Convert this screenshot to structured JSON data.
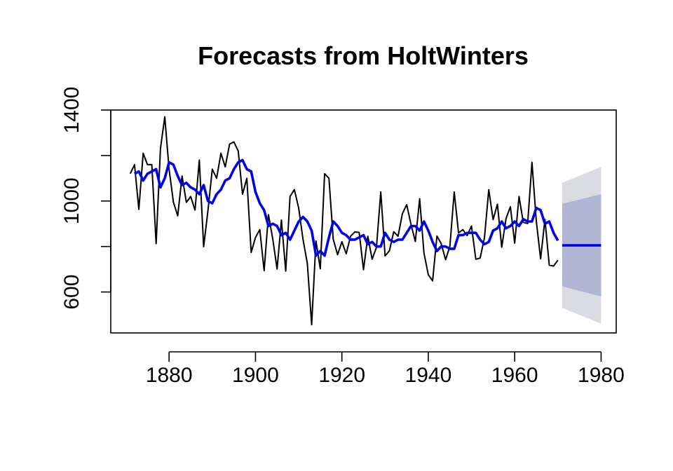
{
  "chart_data": {
    "type": "line",
    "title": "Forecasts from HoltWinters",
    "xlabel": "",
    "ylabel": "",
    "xlim": [
      1866.5,
      1983.5
    ],
    "ylim": [
      420,
      1400
    ],
    "x_ticks": [
      1880,
      1900,
      1920,
      1940,
      1960,
      1980
    ],
    "y_ticks": [
      600,
      1000,
      1400
    ],
    "x_tick_labels": [
      "1880",
      "1900",
      "1920",
      "1940",
      "1960",
      "1980"
    ],
    "y_tick_labels": [
      "600",
      "1000",
      "1400"
    ],
    "grid": false,
    "legend": "none",
    "colors": {
      "observed": "#000000",
      "fitted": "#0000ee",
      "forecast": "#0000ee",
      "band80": "#b1b5d4",
      "band95": "#dbdbe2"
    },
    "series": [
      {
        "role": "observed",
        "x_start": 1871,
        "values": [
          1120,
          1160,
          963,
          1210,
          1160,
          1160,
          813,
          1230,
          1370,
          1140,
          995,
          935,
          1110,
          994,
          1020,
          960,
          1180,
          799,
          958,
          1140,
          1100,
          1210,
          1150,
          1250,
          1260,
          1220,
          1030,
          1100,
          774,
          840,
          874,
          694,
          940,
          833,
          701,
          916,
          692,
          1020,
          1050,
          969,
          831,
          726,
          456,
          824,
          702,
          1120,
          1100,
          832,
          764,
          821,
          768,
          845,
          864,
          862,
          698,
          845,
          744,
          796,
          1040,
          759,
          781,
          865,
          845,
          944,
          984,
          897,
          822,
          1010,
          771,
          676,
          649,
          846,
          812,
          742,
          801,
          1040,
          860,
          874,
          848,
          890,
          744,
          749,
          838,
          1050,
          918,
          986,
          797,
          923,
          975,
          815,
          1020,
          906,
          901,
          1170,
          912,
          746,
          919,
          718,
          714,
          740
        ]
      },
      {
        "role": "fitted",
        "x_start": 1872,
        "values": [
          1120,
          1130,
          1090,
          1120,
          1130,
          1140,
          1060,
          1100,
          1170,
          1160,
          1110,
          1070,
          1080,
          1060,
          1050,
          1030,
          1070,
          1000,
          990,
          1030,
          1050,
          1090,
          1100,
          1140,
          1170,
          1180,
          1140,
          1130,
          1040,
          990,
          960,
          890,
          900,
          890,
          850,
          860,
          830,
          870,
          910,
          930,
          910,
          870,
          760,
          780,
          760,
          840,
          910,
          890,
          860,
          850,
          830,
          830,
          840,
          850,
          810,
          820,
          800,
          800,
          860,
          830,
          820,
          830,
          830,
          860,
          890,
          890,
          870,
          910,
          870,
          820,
          780,
          800,
          800,
          790,
          790,
          850,
          850,
          860,
          860,
          860,
          830,
          810,
          820,
          870,
          880,
          910,
          880,
          890,
          910,
          890,
          920,
          910,
          910,
          970,
          960,
          900,
          910,
          860,
          826
        ]
      },
      {
        "role": "forecast",
        "x": [
          1971,
          1980
        ],
        "values": [
          805,
          805
        ]
      }
    ],
    "bands": [
      {
        "level": 95,
        "x": [
          1971,
          1980
        ],
        "lower": [
          530,
          460
        ],
        "upper": [
          1080,
          1150
        ]
      },
      {
        "level": 80,
        "x": [
          1971,
          1980
        ],
        "lower": [
          625,
          580
        ],
        "upper": [
          988,
          1030
        ]
      }
    ]
  }
}
